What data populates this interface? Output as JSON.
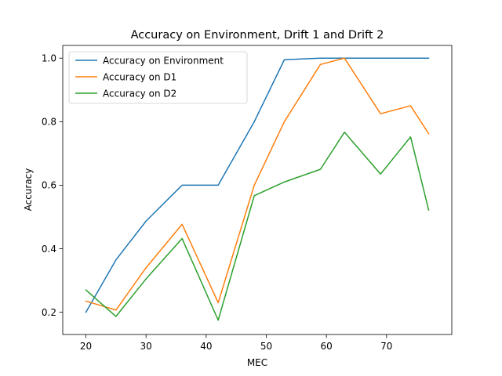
{
  "chart_data": {
    "type": "line",
    "title": "Accuracy on Environment, Drift 1 and Drift 2",
    "xlabel": "MEC",
    "ylabel": "Accuracy",
    "xlim": [
      16.15,
      80.85
    ],
    "ylim": [
      0.13,
      1.04
    ],
    "xticks": [
      20,
      30,
      40,
      50,
      60,
      70
    ],
    "xtick_labels": [
      "20",
      "30",
      "40",
      "50",
      "60",
      "70"
    ],
    "yticks": [
      0.2,
      0.4,
      0.6,
      0.8,
      1.0
    ],
    "ytick_labels": [
      "0.2",
      "0.4",
      "0.6",
      "0.8",
      "1.0"
    ],
    "grid": false,
    "legend_position": "top-left",
    "x": [
      20,
      25,
      30,
      36,
      42,
      48,
      53,
      59,
      63,
      69,
      74,
      77
    ],
    "series": [
      {
        "name": "Accuracy on Environment",
        "color": "#1f77b4",
        "values": [
          0.2,
          0.365,
          0.487,
          0.6,
          0.6,
          0.8,
          0.995,
          1.0,
          1.0,
          1.0,
          1.0,
          1.0
        ]
      },
      {
        "name": "Accuracy on D1",
        "color": "#ff7f0e",
        "values": [
          0.235,
          0.207,
          0.34,
          0.477,
          0.23,
          0.6,
          0.8,
          0.98,
          1.0,
          0.825,
          0.85,
          0.762
        ]
      },
      {
        "name": "Accuracy on D2",
        "color": "#2ca02c",
        "values": [
          0.27,
          0.187,
          0.305,
          0.432,
          0.175,
          0.567,
          0.61,
          0.65,
          0.767,
          0.635,
          0.752,
          0.522
        ]
      }
    ]
  }
}
